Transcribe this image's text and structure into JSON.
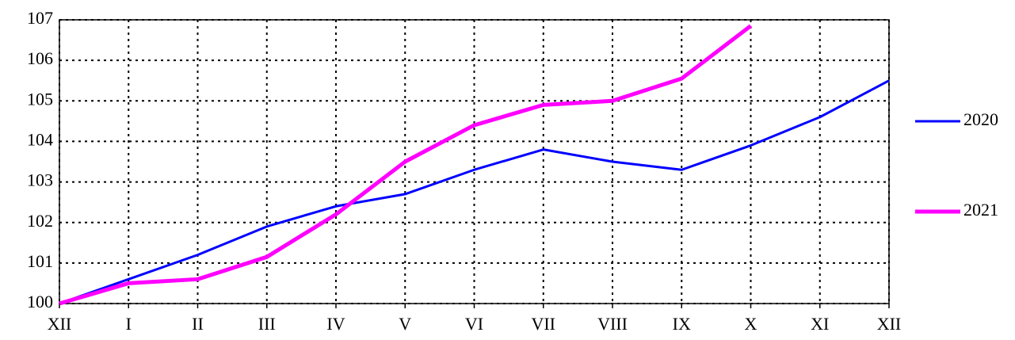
{
  "chart_data": {
    "type": "line",
    "categories": [
      "XII",
      "I",
      "II",
      "III",
      "IV",
      "V",
      "VI",
      "VII",
      "VIII",
      "IX",
      "X",
      "XI",
      "XII"
    ],
    "series": [
      {
        "name": "2020",
        "color": "#0000ff",
        "values": [
          100,
          100.6,
          101.2,
          101.9,
          102.4,
          102.7,
          103.3,
          103.8,
          103.5,
          103.3,
          103.9,
          104.6,
          105.5
        ]
      },
      {
        "name": "2021",
        "color": "#ff00ff",
        "values": [
          100,
          100.5,
          100.6,
          101.15,
          102.2,
          103.5,
          104.4,
          104.9,
          105.0,
          105.55,
          106.85,
          null,
          null
        ]
      }
    ],
    "ylim": [
      100,
      107
    ],
    "yticks": [
      100,
      101,
      102,
      103,
      104,
      105,
      106,
      107
    ],
    "grid": true,
    "legend": "right"
  }
}
